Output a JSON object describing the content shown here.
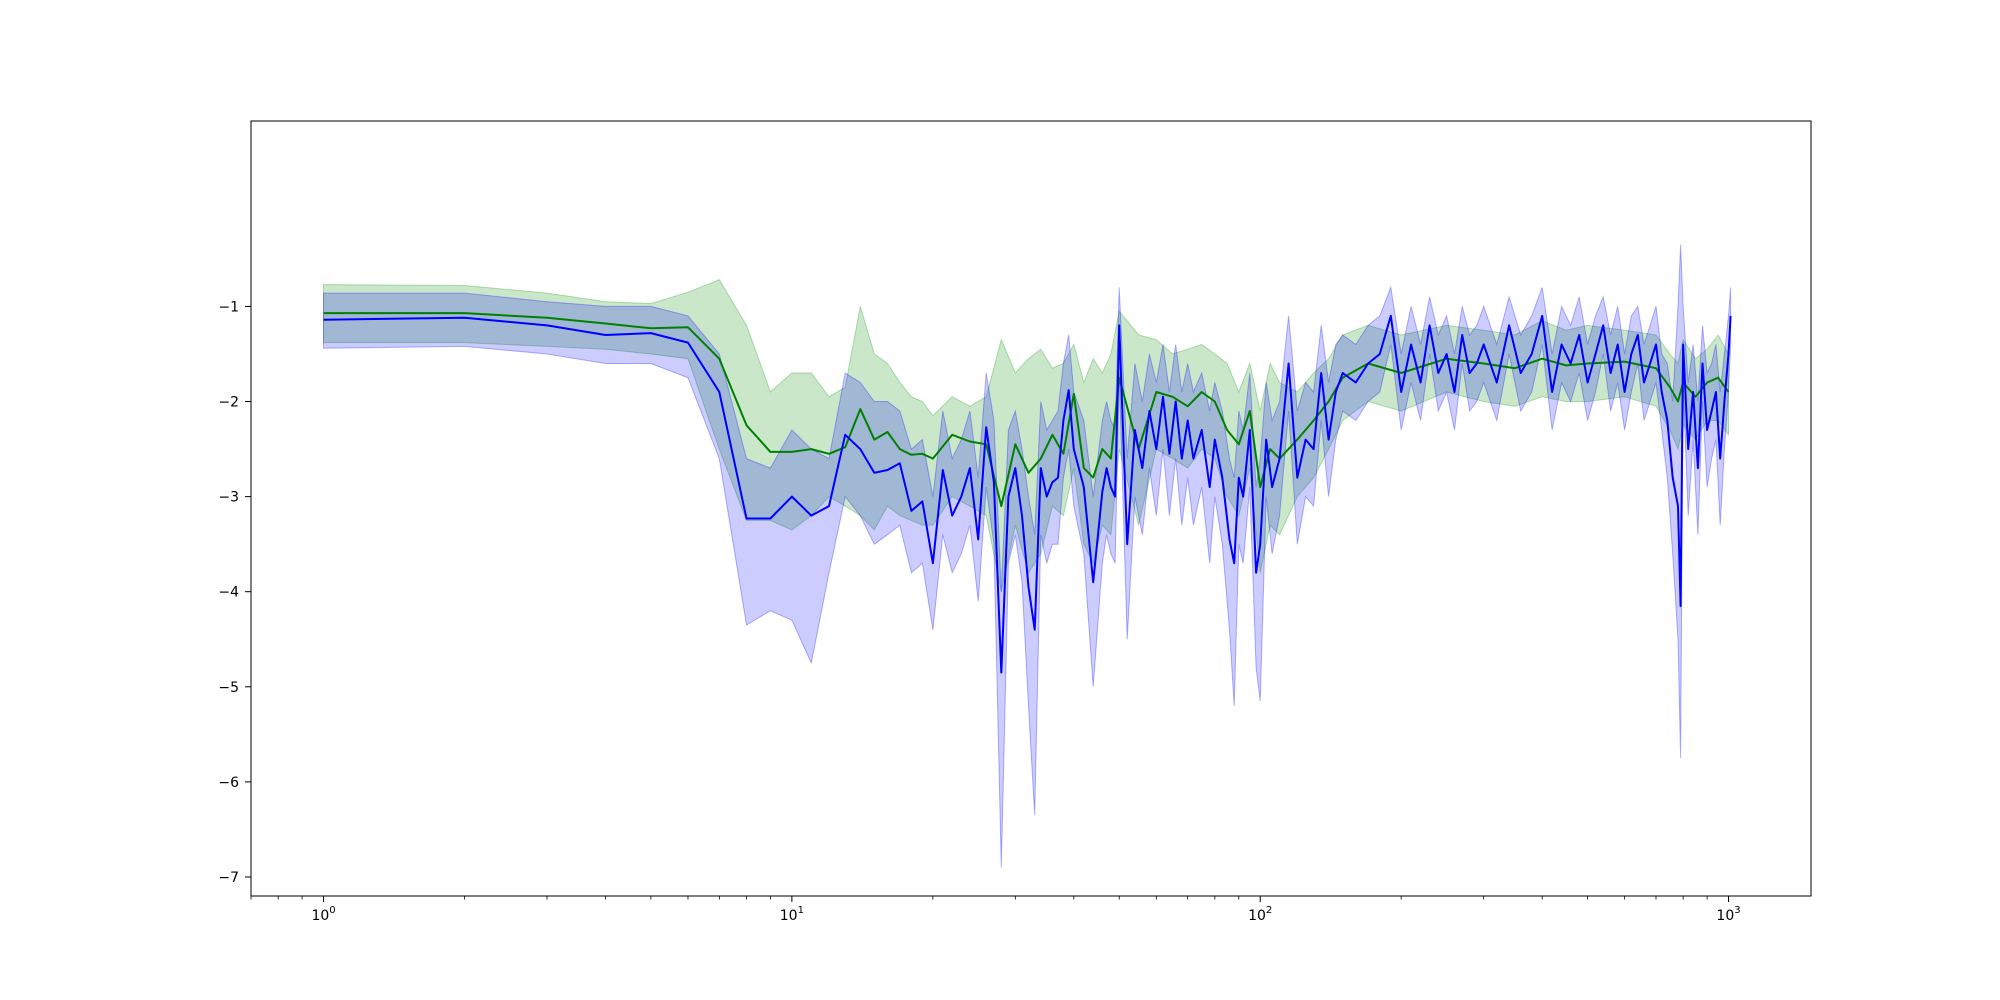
{
  "chart_data": {
    "type": "line",
    "title": "",
    "xlabel": "",
    "ylabel": "",
    "xscale": "log",
    "xlim": [
      0.7,
      1500
    ],
    "ylim": [
      -7.2,
      0.95
    ],
    "grid": false,
    "legend": "none",
    "x_ticks": [
      {
        "value": 1,
        "base": "10",
        "exp": "0"
      },
      {
        "value": 10,
        "base": "10",
        "exp": "1"
      },
      {
        "value": 100,
        "base": "10",
        "exp": "2"
      },
      {
        "value": 1000,
        "base": "10",
        "exp": "3"
      }
    ],
    "y_ticks": [
      {
        "value": -1,
        "label": "−1"
      },
      {
        "value": -2,
        "label": "−2"
      },
      {
        "value": -3,
        "label": "−3"
      },
      {
        "value": -4,
        "label": "−4"
      },
      {
        "value": -5,
        "label": "−5"
      },
      {
        "value": -6,
        "label": "−6"
      },
      {
        "value": -7,
        "label": "−7"
      }
    ],
    "series": [
      {
        "color": "#008000",
        "band_color": "#2ca02c",
        "band_opacity": 0.25,
        "x": [
          1,
          2,
          3,
          4,
          5,
          6,
          7,
          8,
          9,
          10,
          11,
          12,
          13,
          14,
          15,
          16,
          17,
          18,
          19,
          20,
          22,
          24,
          26,
          28,
          30,
          32,
          34,
          36,
          38,
          40,
          42,
          44,
          46,
          48,
          50,
          55,
          60,
          65,
          70,
          75,
          80,
          85,
          90,
          95,
          100,
          105,
          110,
          120,
          130,
          140,
          150,
          170,
          200,
          250,
          300,
          350,
          400,
          450,
          500,
          600,
          700,
          750,
          780,
          800,
          850,
          900,
          950,
          1000
        ],
        "y": [
          -1.07,
          -1.07,
          -1.12,
          -1.18,
          -1.23,
          -1.22,
          -1.55,
          -2.25,
          -2.53,
          -2.53,
          -2.5,
          -2.55,
          -2.48,
          -2.08,
          -2.4,
          -2.32,
          -2.5,
          -2.56,
          -2.55,
          -2.6,
          -2.35,
          -2.42,
          -2.45,
          -3.1,
          -2.45,
          -2.75,
          -2.6,
          -2.35,
          -2.55,
          -1.92,
          -2.7,
          -2.8,
          -2.5,
          -2.6,
          -1.75,
          -2.5,
          -1.9,
          -1.95,
          -2.05,
          -1.9,
          -2.0,
          -2.3,
          -2.45,
          -2.1,
          -2.9,
          -2.5,
          -2.6,
          -2.4,
          -2.2,
          -2.0,
          -1.75,
          -1.6,
          -1.7,
          -1.55,
          -1.6,
          -1.65,
          -1.55,
          -1.62,
          -1.6,
          -1.58,
          -1.65,
          -1.85,
          -2.0,
          -1.8,
          -1.95,
          -1.8,
          -1.75,
          -1.9
        ],
        "upper": [
          -0.77,
          -0.78,
          -0.86,
          -0.95,
          -0.97,
          -0.85,
          -0.72,
          -1.2,
          -1.9,
          -1.7,
          -1.7,
          -1.95,
          -1.85,
          -1.0,
          -1.5,
          -1.6,
          -1.8,
          -1.95,
          -2.0,
          -2.15,
          -1.95,
          -2.05,
          -1.95,
          -1.35,
          -1.7,
          -1.55,
          -1.45,
          -1.65,
          -1.6,
          -1.4,
          -1.8,
          -1.55,
          -1.7,
          -1.5,
          -1.05,
          -1.3,
          -1.35,
          -1.5,
          -1.45,
          -1.4,
          -1.5,
          -1.6,
          -1.9,
          -1.6,
          -2.1,
          -1.6,
          -1.8,
          -1.9,
          -1.7,
          -1.55,
          -1.3,
          -1.2,
          -1.3,
          -1.2,
          -1.25,
          -1.3,
          -1.15,
          -1.25,
          -1.2,
          -1.25,
          -1.3,
          -1.5,
          -1.6,
          -1.35,
          -1.55,
          -1.45,
          -1.3,
          -1.5
        ],
        "lower": [
          -1.38,
          -1.38,
          -1.42,
          -1.45,
          -1.5,
          -1.55,
          -2.5,
          -3.25,
          -3.25,
          -3.35,
          -3.2,
          -3.0,
          -3.1,
          -3.2,
          -3.35,
          -3.1,
          -3.2,
          -3.25,
          -3.3,
          -3.3,
          -3.0,
          -3.1,
          -3.2,
          -4.0,
          -3.3,
          -3.8,
          -3.6,
          -3.1,
          -3.2,
          -2.7,
          -3.5,
          -3.7,
          -3.3,
          -3.4,
          -2.5,
          -3.3,
          -2.5,
          -2.6,
          -2.7,
          -2.5,
          -2.6,
          -3.0,
          -3.2,
          -2.7,
          -3.8,
          -3.3,
          -3.4,
          -3.0,
          -2.8,
          -2.5,
          -2.2,
          -2.0,
          -2.1,
          -1.9,
          -2.0,
          -2.05,
          -1.95,
          -2.0,
          -2.0,
          -1.95,
          -2.05,
          -2.3,
          -2.5,
          -2.25,
          -2.4,
          -2.2,
          -2.2,
          -2.35
        ]
      },
      {
        "color": "#0000ff",
        "band_color": "#0000ff",
        "band_opacity": 0.2,
        "x": [
          1,
          2,
          3,
          4,
          5,
          6,
          7,
          8,
          9,
          10,
          11,
          12,
          13,
          14,
          15,
          16,
          17,
          18,
          19,
          20,
          21,
          22,
          23,
          24,
          25,
          26,
          27,
          28,
          29,
          30,
          31,
          32,
          33,
          34,
          35,
          36,
          37,
          38,
          39,
          40,
          42,
          44,
          46,
          47,
          48,
          49,
          50,
          52,
          54,
          56,
          58,
          60,
          62,
          64,
          66,
          68,
          70,
          72,
          75,
          78,
          80,
          83,
          86,
          88,
          90,
          92,
          95,
          98,
          100,
          103,
          106,
          110,
          115,
          120,
          125,
          130,
          135,
          140,
          145,
          150,
          160,
          170,
          180,
          190,
          200,
          210,
          220,
          230,
          240,
          250,
          260,
          270,
          280,
          290,
          300,
          320,
          340,
          360,
          380,
          400,
          420,
          440,
          460,
          480,
          500,
          520,
          540,
          560,
          580,
          600,
          620,
          640,
          660,
          680,
          700,
          720,
          740,
          760,
          780,
          790,
          800,
          820,
          840,
          860,
          880,
          900,
          920,
          940,
          960,
          980,
          1000,
          1010
        ],
        "y": [
          -1.14,
          -1.12,
          -1.2,
          -1.3,
          -1.28,
          -1.38,
          -1.9,
          -3.23,
          -3.23,
          -3.0,
          -3.2,
          -3.1,
          -2.35,
          -2.5,
          -2.75,
          -2.72,
          -2.65,
          -3.15,
          -3.05,
          -3.7,
          -2.72,
          -3.2,
          -3.0,
          -2.7,
          -3.45,
          -2.27,
          -2.85,
          -4.85,
          -3.0,
          -2.7,
          -3.2,
          -3.95,
          -4.4,
          -2.7,
          -3.0,
          -2.85,
          -2.8,
          -2.2,
          -1.88,
          -2.5,
          -2.9,
          -3.9,
          -2.95,
          -2.7,
          -2.9,
          -3.0,
          -1.2,
          -3.5,
          -2.3,
          -2.7,
          -2.1,
          -2.5,
          -1.95,
          -2.55,
          -2.0,
          -2.6,
          -2.2,
          -2.6,
          -2.3,
          -2.9,
          -2.4,
          -2.8,
          -3.45,
          -3.7,
          -2.8,
          -3.0,
          -2.3,
          -3.8,
          -3.5,
          -2.4,
          -2.9,
          -2.6,
          -1.6,
          -2.8,
          -2.4,
          -2.5,
          -1.7,
          -2.4,
          -1.9,
          -1.7,
          -1.8,
          -1.6,
          -1.5,
          -1.1,
          -1.9,
          -1.4,
          -1.8,
          -1.2,
          -1.7,
          -1.5,
          -1.9,
          -1.3,
          -1.7,
          -1.6,
          -1.4,
          -1.8,
          -1.2,
          -1.7,
          -1.5,
          -1.1,
          -1.9,
          -1.4,
          -1.6,
          -1.3,
          -1.8,
          -1.5,
          -1.2,
          -1.7,
          -1.4,
          -1.9,
          -1.5,
          -1.3,
          -1.8,
          -1.6,
          -1.4,
          -1.9,
          -2.2,
          -2.8,
          -3.1,
          -4.15,
          -1.4,
          -2.5,
          -1.9,
          -2.7,
          -1.6,
          -2.3,
          -2.1,
          -1.9,
          -2.6,
          -2.0,
          -1.5,
          -1.1
        ],
        "upper": [
          -0.86,
          -0.86,
          -0.95,
          -1.0,
          -1.0,
          -1.1,
          -1.5,
          -2.6,
          -2.7,
          -2.3,
          -2.5,
          -2.6,
          -1.7,
          -1.8,
          -2.0,
          -2.0,
          -2.1,
          -2.5,
          -2.4,
          -3.0,
          -2.1,
          -2.6,
          -2.4,
          -2.1,
          -2.8,
          -1.7,
          -2.2,
          -4.0,
          -2.3,
          -2.1,
          -2.5,
          -3.0,
          -3.4,
          -2.0,
          -2.3,
          -2.2,
          -2.1,
          -1.6,
          -1.3,
          -1.9,
          -2.2,
          -3.0,
          -2.2,
          -2.0,
          -2.2,
          -2.3,
          -0.8,
          -2.6,
          -1.6,
          -2.0,
          -1.5,
          -1.8,
          -1.4,
          -1.9,
          -1.4,
          -1.9,
          -1.6,
          -1.9,
          -1.7,
          -2.1,
          -1.8,
          -2.1,
          -2.6,
          -2.8,
          -2.1,
          -2.3,
          -1.7,
          -2.9,
          -2.6,
          -1.8,
          -2.2,
          -2.0,
          -1.1,
          -2.1,
          -1.8,
          -1.9,
          -1.2,
          -1.8,
          -1.4,
          -1.3,
          -1.4,
          -1.2,
          -1.1,
          -0.8,
          -1.5,
          -1.0,
          -1.4,
          -0.9,
          -1.3,
          -1.1,
          -1.5,
          -1.0,
          -1.3,
          -1.2,
          -1.0,
          -1.4,
          -0.9,
          -1.3,
          -1.1,
          -0.8,
          -1.5,
          -1.0,
          -1.2,
          -0.9,
          -1.4,
          -1.1,
          -0.9,
          -1.3,
          -1.0,
          -1.5,
          -1.1,
          -1.0,
          -1.4,
          -1.2,
          -1.0,
          -1.5,
          -1.6,
          -2.0,
          -1.0,
          -0.35,
          -1.0,
          -1.8,
          -1.4,
          -2.0,
          -1.2,
          -1.7,
          -1.6,
          -1.4,
          -1.9,
          -1.5,
          -1.1,
          -0.8
        ],
        "lower": [
          -1.44,
          -1.42,
          -1.5,
          -1.6,
          -1.6,
          -1.75,
          -2.6,
          -4.35,
          -4.2,
          -4.3,
          -4.75,
          -3.8,
          -3.0,
          -3.2,
          -3.5,
          -3.4,
          -3.3,
          -3.8,
          -3.7,
          -4.4,
          -3.4,
          -3.8,
          -3.6,
          -3.3,
          -4.1,
          -2.9,
          -3.5,
          -6.9,
          -3.7,
          -3.4,
          -3.9,
          -5.2,
          -6.35,
          -3.4,
          -3.7,
          -3.5,
          -3.5,
          -2.8,
          -2.5,
          -3.1,
          -3.6,
          -5.0,
          -3.7,
          -3.4,
          -3.6,
          -3.7,
          -1.7,
          -4.5,
          -3.0,
          -3.4,
          -2.7,
          -3.2,
          -2.5,
          -3.2,
          -2.6,
          -3.3,
          -2.8,
          -3.3,
          -2.9,
          -3.7,
          -3.0,
          -3.5,
          -4.4,
          -5.2,
          -3.5,
          -3.7,
          -2.9,
          -4.8,
          -5.15,
          -3.0,
          -3.6,
          -3.2,
          -2.1,
          -3.5,
          -3.0,
          -3.1,
          -2.2,
          -3.0,
          -2.4,
          -2.1,
          -2.2,
          -2.0,
          -1.9,
          -1.4,
          -2.3,
          -1.8,
          -2.2,
          -1.5,
          -2.1,
          -1.9,
          -2.3,
          -1.6,
          -2.1,
          -2.0,
          -1.8,
          -2.2,
          -1.5,
          -2.1,
          -1.9,
          -1.4,
          -2.3,
          -1.8,
          -2.0,
          -1.7,
          -2.2,
          -1.9,
          -1.5,
          -2.1,
          -1.8,
          -2.3,
          -1.9,
          -1.6,
          -2.2,
          -2.0,
          -1.8,
          -2.3,
          -2.8,
          -3.6,
          -4.5,
          -5.75,
          -1.8,
          -3.2,
          -2.4,
          -3.4,
          -2.0,
          -2.9,
          -2.6,
          -2.4,
          -3.3,
          -2.5,
          -1.9,
          -1.4
        ]
      }
    ]
  }
}
